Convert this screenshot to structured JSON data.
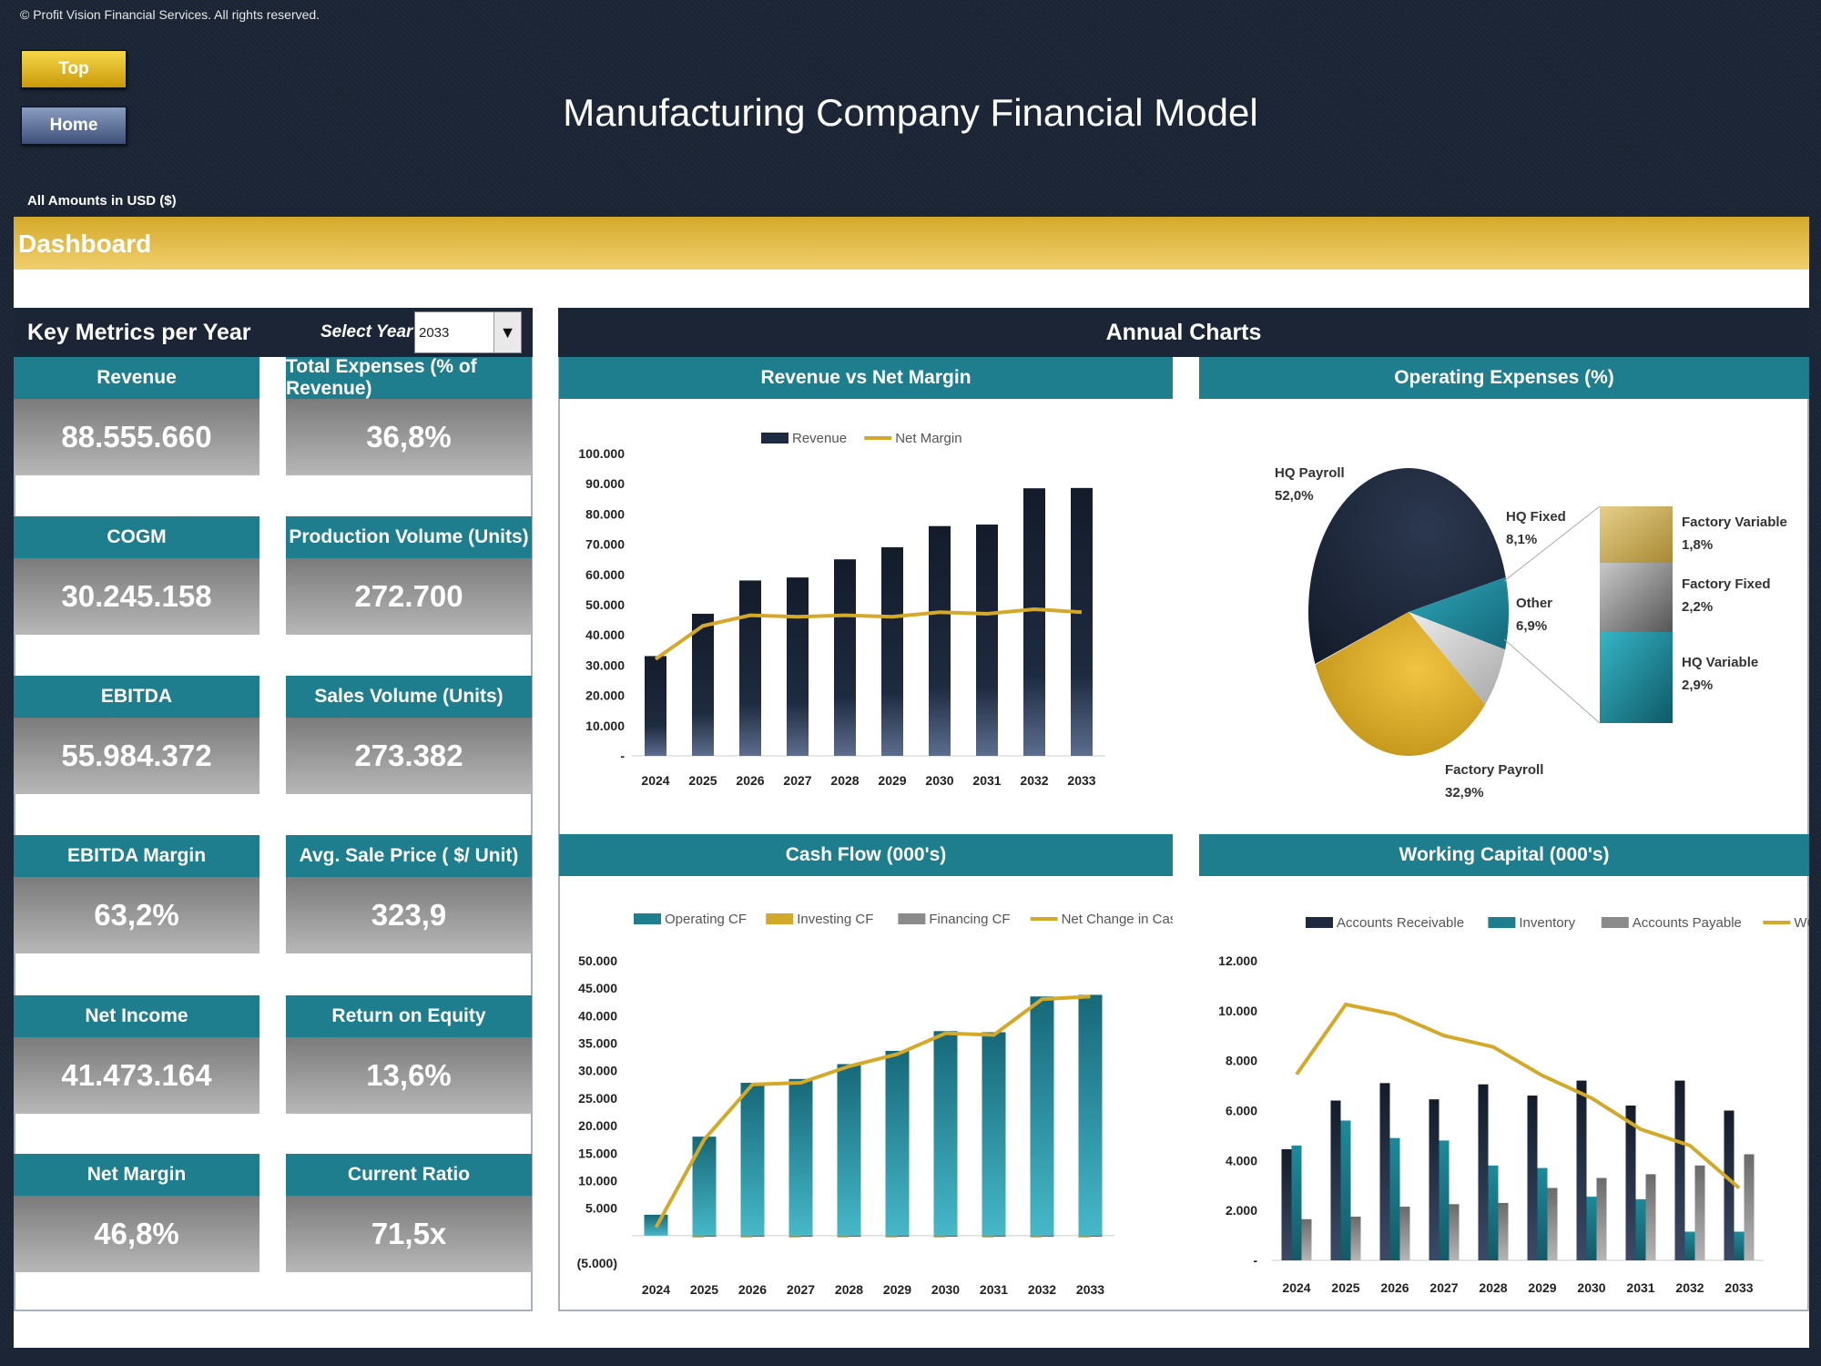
{
  "header": {
    "copyright": "© Profit Vision Financial Services. All rights reserved.",
    "top_label": "Top",
    "home_label": "Home",
    "title": "Manufacturing Company Financial Model",
    "currency_note": "All Amounts in  USD ($)",
    "section_title": "Dashboard"
  },
  "left_panel": {
    "title": "Key Metrics per Year",
    "select_label": "Select Year",
    "selected_year": "2033",
    "metrics": [
      {
        "label": "Revenue",
        "value": "88.555.660"
      },
      {
        "label": "Total Expenses (% of Revenue)",
        "value": "36,8%"
      },
      {
        "label": "COGM",
        "value": "30.245.158"
      },
      {
        "label": "Production Volume (Units)",
        "value": "272.700"
      },
      {
        "label": "EBITDA",
        "value": "55.984.372"
      },
      {
        "label": "Sales Volume (Units)",
        "value": "273.382"
      },
      {
        "label": "EBITDA Margin",
        "value": "63,2%"
      },
      {
        "label": "Avg. Sale Price ( $/ Unit)",
        "value": "323,9"
      },
      {
        "label": "Net Income",
        "value": "41.473.164"
      },
      {
        "label": "Return on Equity",
        "value": "13,6%"
      },
      {
        "label": "Net Margin",
        "value": "46,8%"
      },
      {
        "label": "Current Ratio",
        "value": "71,5x"
      }
    ]
  },
  "right_panel": {
    "title": "Annual Charts",
    "chart_titles": [
      "Revenue vs Net Margin",
      "Operating Expenses (%)",
      "Cash Flow (000's)",
      "Working Capital (000's)"
    ]
  },
  "colors": {
    "navy": "#1b2535",
    "teal": "#1e7e8e",
    "gold": "#d4a92a",
    "gray": "#8a8a8a"
  },
  "chart_data": [
    {
      "type": "bar",
      "title": "Revenue vs Net Margin",
      "categories": [
        "2024",
        "2025",
        "2026",
        "2027",
        "2028",
        "2029",
        "2030",
        "2031",
        "2032",
        "2033"
      ],
      "series": [
        {
          "name": "Revenue",
          "kind": "bar",
          "values": [
            33000,
            47000,
            58000,
            59000,
            65000,
            69000,
            76000,
            76500,
            88500,
            88600
          ]
        },
        {
          "name": "Net Margin",
          "kind": "line",
          "values": [
            32000,
            43000,
            46500,
            46000,
            46500,
            46000,
            47500,
            47000,
            48500,
            47500
          ]
        }
      ],
      "yticks": [
        "100.000",
        "90.000",
        "80.000",
        "70.000",
        "60.000",
        "50.000",
        "40.000",
        "30.000",
        "20.000",
        "10.000",
        "-"
      ],
      "ylim": [
        0,
        100000
      ]
    },
    {
      "type": "pie",
      "title": "Operating Expenses (%)",
      "slices": [
        {
          "label": "HQ Payroll",
          "value": "52,0%",
          "pct": 52.0
        },
        {
          "label": "HQ Fixed",
          "value": "8,1%",
          "pct": 8.1
        },
        {
          "label": "Other",
          "value": "6,9%",
          "pct": 6.9
        },
        {
          "label": "Factory Payroll",
          "value": "32,9%",
          "pct": 32.9
        }
      ],
      "breakout": [
        {
          "label": "Factory Variable",
          "value": "1,8%",
          "pct": 1.8
        },
        {
          "label": "Factory Fixed",
          "value": "2,2%",
          "pct": 2.2
        },
        {
          "label": "HQ Variable",
          "value": "2,9%",
          "pct": 2.9
        }
      ]
    },
    {
      "type": "bar",
      "title": "Cash Flow (000's)",
      "categories": [
        "2024",
        "2025",
        "2026",
        "2027",
        "2028",
        "2029",
        "2030",
        "2031",
        "2032",
        "2033"
      ],
      "series": [
        {
          "name": "Operating CF",
          "kind": "bar",
          "values": [
            3800,
            18000,
            27800,
            28500,
            31200,
            33600,
            37200,
            37000,
            43500,
            43800
          ]
        },
        {
          "name": "Investing CF",
          "kind": "bar",
          "values": [
            0,
            -300,
            -300,
            -300,
            -300,
            -300,
            -300,
            -300,
            -300,
            -300
          ]
        },
        {
          "name": "Financing CF",
          "kind": "bar",
          "values": [
            0,
            -200,
            -200,
            -200,
            -200,
            -200,
            -200,
            -200,
            -200,
            -200
          ]
        },
        {
          "name": "Net Change in Cash",
          "kind": "line",
          "values": [
            1500,
            17500,
            27500,
            27800,
            30800,
            33000,
            36800,
            36500,
            43000,
            43500
          ]
        }
      ],
      "yticks": [
        "50.000",
        "45.000",
        "40.000",
        "35.000",
        "30.000",
        "25.000",
        "20.000",
        "15.000",
        "10.000",
        "5.000",
        "",
        "(5.000)"
      ],
      "ylim": [
        -5000,
        50000
      ]
    },
    {
      "type": "bar",
      "title": "Working Capital (000's)",
      "categories": [
        "2024",
        "2025",
        "2026",
        "2027",
        "2028",
        "2029",
        "2030",
        "2031",
        "2032",
        "2033"
      ],
      "series": [
        {
          "name": "Accounts Receivable",
          "kind": "bar",
          "values": [
            4450,
            6400,
            7100,
            6450,
            7050,
            6600,
            7200,
            6200,
            7200,
            6000
          ]
        },
        {
          "name": "Inventory",
          "kind": "bar",
          "values": [
            4600,
            5600,
            4900,
            4800,
            3800,
            3700,
            2550,
            2450,
            1150,
            1150
          ]
        },
        {
          "name": "Accounts Payable",
          "kind": "bar",
          "values": [
            1650,
            1750,
            2150,
            2250,
            2300,
            2900,
            3300,
            3450,
            3800,
            4250
          ]
        },
        {
          "name": "WC",
          "kind": "line",
          "values": [
            7450,
            10250,
            9850,
            9000,
            8550,
            7400,
            6500,
            5250,
            4600,
            2900
          ]
        }
      ],
      "yticks": [
        "12.000",
        "10.000",
        "8.000",
        "6.000",
        "4.000",
        "2.000",
        "-"
      ],
      "ylim": [
        0,
        12000
      ]
    }
  ]
}
